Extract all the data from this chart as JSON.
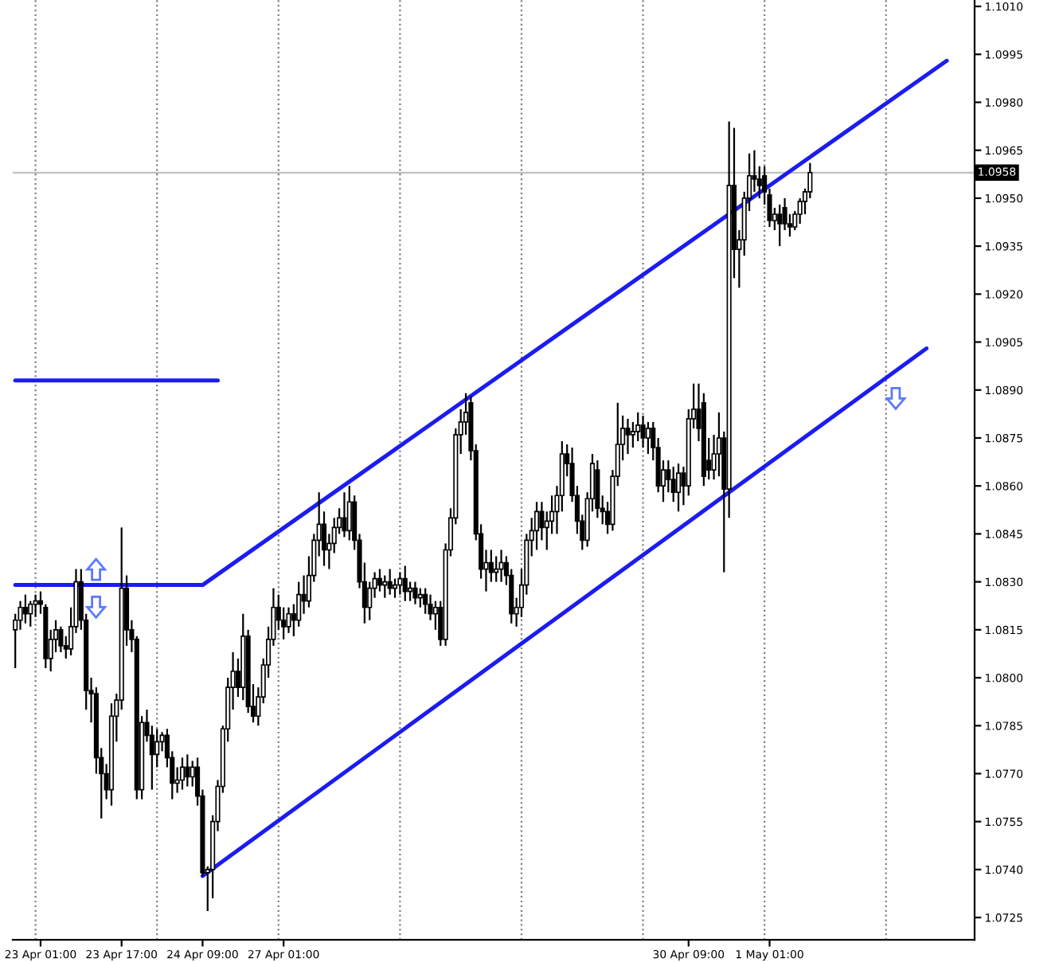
{
  "chart_data": {
    "type": "candlestick",
    "categories": [
      null,
      null,
      null,
      null,
      null,
      "23 Apr 01:00",
      null,
      null,
      null,
      null,
      null,
      null,
      null,
      null,
      null,
      null,
      null,
      null,
      null,
      null,
      null,
      "23 Apr 17:00",
      null,
      null,
      null,
      null,
      null,
      null,
      null,
      null,
      null,
      null,
      null,
      null,
      null,
      null,
      null,
      "24 Apr 09:00",
      null,
      null,
      null,
      null,
      null,
      null,
      null,
      null,
      null,
      null,
      null,
      null,
      null,
      null,
      null,
      "27 Apr 01:00",
      null,
      null,
      null,
      null,
      null,
      null,
      null,
      null,
      null,
      null,
      null,
      null,
      null,
      null,
      null,
      null,
      null,
      null,
      null,
      null,
      null,
      null,
      null,
      null,
      null,
      null,
      null,
      null,
      null,
      null,
      null,
      null,
      null,
      null,
      null,
      null,
      null,
      null,
      null,
      null,
      null,
      null,
      null,
      null,
      null,
      null,
      null,
      null,
      null,
      null,
      null,
      null,
      null,
      null,
      null,
      null,
      null,
      null,
      null,
      null,
      null,
      null,
      null,
      null,
      null,
      null,
      null,
      null,
      null,
      null,
      null,
      null,
      null,
      null,
      null,
      null,
      null,
      null,
      null,
      "30 Apr 09:00",
      null,
      null,
      null,
      null,
      null,
      null,
      null,
      null,
      null,
      null,
      null,
      null,
      null,
      null,
      null,
      "1 May 01:00",
      null,
      null,
      null,
      null,
      null,
      null,
      null,
      null,
      null,
      null,
      null,
      null,
      null,
      null,
      null,
      null,
      null,
      null,
      null,
      null,
      null,
      null,
      null,
      null,
      null,
      null,
      null,
      null,
      null,
      null,
      null,
      null,
      null,
      null,
      null,
      null,
      null,
      null,
      null,
      null
    ],
    "ohlc": [
      [
        1.0815,
        1.082,
        1.0803,
        1.0818
      ],
      [
        1.0818,
        1.0824,
        1.0815,
        1.0822
      ],
      [
        1.0822,
        1.0826,
        1.0817,
        1.082
      ],
      [
        1.082,
        1.0824,
        1.0816,
        1.0823
      ],
      [
        1.0823,
        1.0826,
        1.0819,
        1.0824
      ],
      [
        1.0824,
        1.0827,
        1.082,
        1.0823
      ],
      [
        1.0822,
        1.0823,
        1.0803,
        1.0806
      ],
      [
        1.0806,
        1.0815,
        1.0802,
        1.0812
      ],
      [
        1.0812,
        1.0818,
        1.0808,
        1.0815
      ],
      [
        1.0815,
        1.0816,
        1.0808,
        1.081
      ],
      [
        1.081,
        1.0813,
        1.0806,
        1.0809
      ],
      [
        1.0809,
        1.0822,
        1.0807,
        1.0816
      ],
      [
        1.0816,
        1.0834,
        1.0814,
        1.083
      ],
      [
        1.083,
        1.0834,
        1.0815,
        1.0818
      ],
      [
        1.0818,
        1.082,
        1.079,
        1.0796
      ],
      [
        1.0796,
        1.08,
        1.0786,
        1.0795
      ],
      [
        1.0795,
        1.0797,
        1.077,
        1.0775
      ],
      [
        1.0775,
        1.0778,
        1.0756,
        1.077
      ],
      [
        1.077,
        1.0773,
        1.0762,
        1.0765
      ],
      [
        1.0765,
        1.0792,
        1.076,
        1.0788
      ],
      [
        1.0788,
        1.0795,
        1.078,
        1.0793
      ],
      [
        1.0793,
        1.0847,
        1.079,
        1.0828
      ],
      [
        1.0828,
        1.0832,
        1.081,
        1.0815
      ],
      [
        1.0815,
        1.0818,
        1.0808,
        1.0812
      ],
      [
        1.0812,
        1.0813,
        1.0762,
        1.0765
      ],
      [
        1.0765,
        1.0788,
        1.0762,
        1.0786
      ],
      [
        1.0786,
        1.079,
        1.078,
        1.0782
      ],
      [
        1.0782,
        1.0785,
        1.0765,
        1.0776
      ],
      [
        1.0776,
        1.0784,
        1.0772,
        1.078
      ],
      [
        1.078,
        1.0783,
        1.0777,
        1.0782
      ],
      [
        1.0782,
        1.0784,
        1.0772,
        1.0775
      ],
      [
        1.0775,
        1.0777,
        1.0762,
        1.0767
      ],
      [
        1.0767,
        1.0772,
        1.0764,
        1.0768
      ],
      [
        1.0768,
        1.0775,
        1.0765,
        1.0772
      ],
      [
        1.0772,
        1.0776,
        1.0766,
        1.0769
      ],
      [
        1.0769,
        1.0774,
        1.0766,
        1.0772
      ],
      [
        1.0772,
        1.0775,
        1.076,
        1.0763
      ],
      [
        1.0763,
        1.0765,
        1.0738,
        1.0739
      ],
      [
        1.0739,
        1.0741,
        1.0727,
        1.074
      ],
      [
        1.074,
        1.0757,
        1.0731,
        1.0755
      ],
      [
        1.0755,
        1.0768,
        1.0752,
        1.0766
      ],
      [
        1.0766,
        1.0785,
        1.0764,
        1.0784
      ],
      [
        1.0784,
        1.08,
        1.078,
        1.0797
      ],
      [
        1.0797,
        1.0808,
        1.079,
        1.0802
      ],
      [
        1.0802,
        1.0806,
        1.0794,
        1.0797
      ],
      [
        1.0797,
        1.082,
        1.0793,
        1.0813
      ],
      [
        1.0813,
        1.0815,
        1.0789,
        1.0791
      ],
      [
        1.0791,
        1.0798,
        1.0786,
        1.0788
      ],
      [
        1.0788,
        1.0797,
        1.0785,
        1.0794
      ],
      [
        1.0794,
        1.0806,
        1.0792,
        1.0804
      ],
      [
        1.0804,
        1.0816,
        1.08,
        1.0812
      ],
      [
        1.0812,
        1.0828,
        1.081,
        1.0822
      ],
      [
        1.0822,
        1.0826,
        1.0815,
        1.0818
      ],
      [
        1.0818,
        1.0822,
        1.0812,
        1.0816
      ],
      [
        1.0816,
        1.0822,
        1.0814,
        1.082
      ],
      [
        1.082,
        1.0823,
        1.0813,
        1.0818
      ],
      [
        1.0818,
        1.083,
        1.0816,
        1.0826
      ],
      [
        1.0826,
        1.0832,
        1.082,
        1.0824
      ],
      [
        1.0824,
        1.0838,
        1.0822,
        1.0832
      ],
      [
        1.0832,
        1.0845,
        1.083,
        1.0843
      ],
      [
        1.0843,
        1.0858,
        1.0838,
        1.0848
      ],
      [
        1.0848,
        1.0852,
        1.0835,
        1.084
      ],
      [
        1.084,
        1.0845,
        1.0834,
        1.0842
      ],
      [
        1.0842,
        1.085,
        1.0839,
        1.0847
      ],
      [
        1.0847,
        1.0853,
        1.0845,
        1.085
      ],
      [
        1.085,
        1.0858,
        1.0844,
        1.0846
      ],
      [
        1.0846,
        1.086,
        1.0843,
        1.0855
      ],
      [
        1.0855,
        1.0857,
        1.084,
        1.0843
      ],
      [
        1.0843,
        1.0845,
        1.0828,
        1.083
      ],
      [
        1.083,
        1.0836,
        1.0817,
        1.0822
      ],
      [
        1.0822,
        1.083,
        1.0818,
        1.0828
      ],
      [
        1.0828,
        1.0833,
        1.0825,
        1.0831
      ],
      [
        1.0831,
        1.0834,
        1.0827,
        1.0829
      ],
      [
        1.0829,
        1.0832,
        1.0825,
        1.083
      ],
      [
        1.083,
        1.0834,
        1.0826,
        1.0828
      ],
      [
        1.0828,
        1.0831,
        1.0825,
        1.0829
      ],
      [
        1.0829,
        1.0833,
        1.0826,
        1.0831
      ],
      [
        1.0831,
        1.0835,
        1.0824,
        1.0827
      ],
      [
        1.0827,
        1.083,
        1.0824,
        1.0828
      ],
      [
        1.0828,
        1.083,
        1.0823,
        1.0825
      ],
      [
        1.0825,
        1.0828,
        1.0822,
        1.0826
      ],
      [
        1.0826,
        1.0828,
        1.082,
        1.0823
      ],
      [
        1.0823,
        1.0826,
        1.0818,
        1.082
      ],
      [
        1.082,
        1.0824,
        1.0815,
        1.0822
      ],
      [
        1.0822,
        1.0824,
        1.081,
        1.0812
      ],
      [
        1.0812,
        1.0842,
        1.081,
        1.084
      ],
      [
        1.084,
        1.0853,
        1.0838,
        1.085
      ],
      [
        1.085,
        1.0878,
        1.0848,
        1.0876
      ],
      [
        1.0876,
        1.0884,
        1.087,
        1.088
      ],
      [
        1.088,
        1.0889,
        1.0876,
        1.0883
      ],
      [
        1.0886,
        1.0888,
        1.0868,
        1.0871
      ],
      [
        1.0871,
        1.0873,
        1.0843,
        1.0845
      ],
      [
        1.0845,
        1.0848,
        1.0831,
        1.0834
      ],
      [
        1.0834,
        1.084,
        1.0827,
        1.0836
      ],
      [
        1.0836,
        1.084,
        1.083,
        1.0833
      ],
      [
        1.0833,
        1.0838,
        1.083,
        1.0834
      ],
      [
        1.0834,
        1.084,
        1.083,
        1.0836
      ],
      [
        1.0836,
        1.0838,
        1.0829,
        1.0832
      ],
      [
        1.0832,
        1.0834,
        1.0817,
        1.082
      ],
      [
        1.082,
        1.0825,
        1.0816,
        1.0822
      ],
      [
        1.0822,
        1.0834,
        1.0819,
        1.0829
      ],
      [
        1.0829,
        1.0845,
        1.0826,
        1.0843
      ],
      [
        1.0843,
        1.085,
        1.0838,
        1.0846
      ],
      [
        1.0846,
        1.0855,
        1.084,
        1.0852
      ],
      [
        1.0852,
        1.0855,
        1.0843,
        1.0847
      ],
      [
        1.0847,
        1.0852,
        1.084,
        1.0849
      ],
      [
        1.0849,
        1.0857,
        1.0845,
        1.0852
      ],
      [
        1.0852,
        1.086,
        1.0845,
        1.0857
      ],
      [
        1.0857,
        1.0874,
        1.0852,
        1.087
      ],
      [
        1.087,
        1.0873,
        1.0863,
        1.0867
      ],
      [
        1.0867,
        1.0872,
        1.0855,
        1.0857
      ],
      [
        1.0857,
        1.086,
        1.0845,
        1.0849
      ],
      [
        1.0849,
        1.0851,
        1.084,
        1.0843
      ],
      [
        1.0843,
        1.0858,
        1.0841,
        1.0856
      ],
      [
        1.0856,
        1.087,
        1.0852,
        1.0867
      ],
      [
        1.0865,
        1.0868,
        1.085,
        1.0853
      ],
      [
        1.0853,
        1.0857,
        1.0848,
        1.0852
      ],
      [
        1.0852,
        1.0855,
        1.0845,
        1.0848
      ],
      [
        1.0848,
        1.0865,
        1.0846,
        1.0863
      ],
      [
        1.0863,
        1.0886,
        1.086,
        1.0873
      ],
      [
        1.0873,
        1.0882,
        1.0868,
        1.0878
      ],
      [
        1.0878,
        1.0881,
        1.087,
        1.0876
      ],
      [
        1.0876,
        1.088,
        1.0872,
        1.0877
      ],
      [
        1.0877,
        1.0883,
        1.0874,
        1.0879
      ],
      [
        1.0879,
        1.0882,
        1.0872,
        1.0875
      ],
      [
        1.0875,
        1.088,
        1.087,
        1.0878
      ],
      [
        1.0878,
        1.088,
        1.0868,
        1.0872
      ],
      [
        1.0872,
        1.0875,
        1.0858,
        1.086
      ],
      [
        1.086,
        1.0868,
        1.0855,
        1.0865
      ],
      [
        1.0865,
        1.0868,
        1.0858,
        1.0862
      ],
      [
        1.0862,
        1.0866,
        1.0855,
        1.0858
      ],
      [
        1.0858,
        1.0867,
        1.0852,
        1.0864
      ],
      [
        1.0864,
        1.0866,
        1.0854,
        1.086
      ],
      [
        1.086,
        1.0884,
        1.0857,
        1.0881
      ],
      [
        1.0881,
        1.0892,
        1.0878,
        1.0884
      ],
      [
        1.0884,
        1.0892,
        1.0874,
        1.0878
      ],
      [
        1.0886,
        1.0889,
        1.086,
        1.0863
      ],
      [
        1.0868,
        1.0875,
        1.0862,
        1.0865
      ],
      [
        1.0865,
        1.0876,
        1.0862,
        1.087
      ],
      [
        1.087,
        1.0883,
        1.0863,
        1.0875
      ],
      [
        1.0875,
        1.0877,
        1.0833,
        1.0859
      ],
      [
        1.0859,
        1.0974,
        1.085,
        1.0954
      ],
      [
        1.0954,
        1.0972,
        1.0925,
        1.0934
      ],
      [
        1.0934,
        1.094,
        1.0922,
        1.0937
      ],
      [
        1.0937,
        1.0952,
        1.0932,
        1.095
      ],
      [
        1.095,
        1.0964,
        1.0946,
        1.0957
      ],
      [
        1.0957,
        1.0965,
        1.0952,
        1.0956
      ],
      [
        1.0956,
        1.096,
        1.095,
        1.0954
      ],
      [
        1.0957,
        1.096,
        1.0948,
        1.0952
      ],
      [
        1.0951,
        1.0953,
        1.0941,
        1.0943
      ],
      [
        1.0943,
        1.0947,
        1.094,
        1.0945
      ],
      [
        1.0945,
        1.0948,
        1.0935,
        1.0942
      ],
      [
        1.0947,
        1.095,
        1.094,
        1.0942
      ],
      [
        1.0942,
        1.0945,
        1.0938,
        1.0941
      ],
      [
        1.0941,
        1.0946,
        1.094,
        1.0945
      ],
      [
        1.0945,
        1.095,
        1.0942,
        1.0949
      ],
      [
        1.0949,
        1.0953,
        1.0945,
        1.0952
      ],
      [
        1.0952,
        1.0961,
        1.095,
        1.0958
      ],
      null,
      null,
      null,
      null,
      null,
      null,
      null,
      null,
      null,
      null,
      null,
      null,
      null,
      null,
      null,
      null,
      null,
      null,
      null,
      null,
      null,
      null,
      null,
      null,
      null,
      null,
      null,
      null,
      null,
      null,
      null,
      null
    ],
    "series": [
      {
        "type": "line",
        "color": "#1c1cf0",
        "values": [
          1.0893,
          null,
          null,
          null,
          null,
          null,
          null,
          null,
          null,
          null,
          null,
          null,
          null,
          null,
          null,
          null,
          null,
          null,
          null,
          null,
          null,
          null,
          null,
          null,
          null,
          null,
          null,
          null,
          null,
          null,
          null,
          null,
          null,
          null,
          null,
          null,
          null,
          null,
          null,
          null,
          1.0893,
          null,
          null,
          null,
          null,
          null,
          null,
          null,
          null,
          null,
          null,
          null,
          null,
          null,
          null,
          null,
          null,
          null,
          null,
          null,
          null,
          null,
          null,
          null,
          null,
          null,
          null,
          null,
          null,
          null,
          null,
          null,
          null,
          null,
          null,
          null,
          null,
          null,
          null,
          null,
          null,
          null,
          null,
          null,
          null,
          null,
          null,
          null,
          null,
          null,
          null,
          null,
          null,
          null,
          null,
          null,
          null,
          null,
          null,
          null,
          null,
          null,
          null,
          null,
          null,
          null,
          null,
          null,
          null,
          null,
          null,
          null,
          null,
          null,
          null,
          null,
          null,
          null,
          null,
          null,
          null,
          null,
          null,
          null,
          null,
          null,
          null,
          null,
          null,
          null,
          null,
          null,
          null,
          null,
          null,
          null,
          null,
          null,
          null,
          null,
          null,
          null,
          null,
          null,
          null,
          null,
          null,
          null,
          null,
          null,
          null,
          null,
          null,
          null,
          null,
          null,
          null,
          null,
          null,
          null,
          null,
          null,
          null,
          null,
          null,
          null,
          null,
          null,
          null,
          null,
          null,
          null,
          null,
          null,
          null,
          null,
          null,
          null,
          null,
          null,
          null,
          null,
          null,
          null,
          null,
          null,
          null,
          null,
          null,
          null
        ]
      },
      {
        "type": "line",
        "color": "#1c1cf0",
        "values": [
          1.0829,
          null,
          null,
          null,
          null,
          null,
          null,
          null,
          null,
          null,
          null,
          null,
          null,
          null,
          null,
          null,
          null,
          null,
          null,
          null,
          null,
          null,
          null,
          null,
          null,
          null,
          null,
          null,
          null,
          null,
          null,
          null,
          null,
          null,
          null,
          null,
          null,
          1.0829,
          null,
          null,
          null,
          null,
          null,
          null,
          null,
          null,
          null,
          null,
          null,
          null,
          null,
          null,
          null,
          null,
          null,
          null,
          null,
          null,
          null,
          null,
          null,
          null,
          null,
          null,
          null,
          null,
          null,
          null,
          null,
          null,
          null,
          null,
          null,
          null,
          null,
          null,
          null,
          null,
          null,
          null,
          null,
          null,
          null,
          null,
          null,
          null,
          null,
          null,
          null,
          null,
          null,
          null,
          null,
          null,
          null,
          null,
          null,
          null,
          null,
          null,
          null,
          null,
          null,
          null,
          null,
          null,
          null,
          null,
          null,
          null,
          null,
          null,
          null,
          null,
          null,
          null,
          null,
          null,
          null,
          null,
          null,
          null,
          null,
          null,
          null,
          null,
          null,
          null,
          null,
          null,
          null,
          null,
          null,
          null,
          null,
          null,
          null,
          null,
          null,
          null,
          null,
          null,
          null,
          null,
          null,
          null,
          null,
          null,
          null,
          null,
          null,
          null,
          null,
          null,
          null,
          null,
          null,
          null,
          null,
          null,
          null,
          null,
          null,
          null,
          null,
          null,
          null,
          null,
          null,
          null,
          null,
          null,
          null,
          null,
          null,
          null,
          null,
          null,
          null,
          null,
          null,
          null,
          null,
          null,
          null,
          null,
          null,
          null,
          null,
          null
        ]
      },
      {
        "type": "line",
        "color": "#1c1cf0",
        "values": [
          null,
          null,
          null,
          null,
          null,
          null,
          null,
          null,
          null,
          null,
          null,
          null,
          null,
          null,
          null,
          null,
          null,
          null,
          null,
          null,
          null,
          null,
          null,
          null,
          null,
          null,
          null,
          null,
          null,
          null,
          null,
          null,
          null,
          null,
          null,
          null,
          null,
          1.0829,
          null,
          null,
          null,
          null,
          null,
          null,
          null,
          null,
          null,
          null,
          null,
          null,
          null,
          null,
          null,
          null,
          null,
          null,
          null,
          null,
          null,
          null,
          null,
          null,
          null,
          null,
          null,
          null,
          null,
          null,
          null,
          null,
          null,
          null,
          null,
          null,
          null,
          null,
          null,
          null,
          null,
          null,
          null,
          null,
          null,
          null,
          null,
          null,
          null,
          null,
          null,
          null,
          null,
          null,
          null,
          null,
          null,
          null,
          null,
          null,
          null,
          null,
          null,
          null,
          null,
          null,
          null,
          null,
          null,
          null,
          null,
          null,
          null,
          null,
          null,
          null,
          null,
          null,
          null,
          null,
          null,
          null,
          null,
          null,
          null,
          null,
          null,
          null,
          null,
          null,
          null,
          null,
          null,
          null,
          null,
          null,
          null,
          null,
          null,
          null,
          null,
          null,
          null,
          null,
          null,
          null,
          null,
          null,
          null,
          null,
          null,
          null,
          null,
          null,
          null,
          null,
          null,
          null,
          null,
          null,
          null,
          null,
          null,
          null,
          null,
          null,
          null,
          null,
          null,
          null,
          null,
          null,
          null,
          null,
          null,
          null,
          null,
          null,
          null,
          null,
          null,
          null,
          null,
          null,
          null,
          null,
          1.0993,
          null,
          null,
          null,
          null,
          null
        ]
      },
      {
        "type": "line",
        "color": "#1c1cf0",
        "values": [
          null,
          null,
          null,
          null,
          null,
          null,
          null,
          null,
          null,
          null,
          null,
          null,
          null,
          null,
          null,
          null,
          null,
          null,
          null,
          null,
          null,
          null,
          null,
          null,
          null,
          null,
          null,
          null,
          null,
          null,
          null,
          null,
          null,
          null,
          null,
          null,
          null,
          1.0738,
          null,
          null,
          null,
          null,
          null,
          null,
          null,
          null,
          null,
          null,
          null,
          null,
          null,
          null,
          null,
          null,
          null,
          null,
          null,
          null,
          null,
          null,
          null,
          null,
          null,
          null,
          null,
          null,
          null,
          null,
          null,
          null,
          null,
          null,
          null,
          null,
          null,
          null,
          null,
          null,
          null,
          null,
          null,
          null,
          null,
          null,
          null,
          null,
          null,
          null,
          null,
          null,
          null,
          null,
          null,
          null,
          null,
          null,
          null,
          null,
          null,
          null,
          null,
          null,
          null,
          null,
          null,
          null,
          null,
          null,
          null,
          null,
          null,
          null,
          null,
          null,
          null,
          null,
          null,
          null,
          null,
          null,
          null,
          null,
          null,
          null,
          null,
          null,
          null,
          null,
          null,
          null,
          null,
          null,
          null,
          null,
          null,
          null,
          null,
          null,
          null,
          null,
          null,
          null,
          null,
          null,
          null,
          null,
          null,
          null,
          null,
          null,
          null,
          null,
          null,
          null,
          null,
          null,
          null,
          null,
          null,
          null,
          null,
          null,
          null,
          null,
          null,
          null,
          null,
          null,
          null,
          null,
          null,
          null,
          null,
          null,
          null,
          null,
          null,
          null,
          null,
          null,
          1.0903,
          null,
          null,
          null,
          null,
          null,
          null,
          null,
          null,
          null
        ]
      }
    ],
    "ref_lines": [
      {
        "axis": "y",
        "value": 1.0958,
        "label": "1.0958",
        "color": "#c0c0c0",
        "line_style": "solid"
      }
    ],
    "grid": "x",
    "ylim": [
      1.0718,
      1.1012
    ],
    "yticks": [
      1.0725,
      {
        "value": 1.074,
        "label": "1.0740"
      },
      1.0755,
      {
        "value": 1.077,
        "label": "1.0770"
      },
      1.0785,
      {
        "value": 1.08,
        "label": "1.0800"
      },
      1.0815,
      {
        "value": 1.083,
        "label": "1.0830"
      },
      1.0845,
      {
        "value": 1.086,
        "label": "1.0860"
      },
      1.0875,
      {
        "value": 1.089,
        "label": "1.0890"
      },
      1.0905,
      {
        "value": 1.092,
        "label": "1.0920"
      },
      1.0935,
      {
        "value": 1.095,
        "label": "1.0950"
      },
      1.0965,
      {
        "value": 1.098,
        "label": "1.0980"
      },
      1.0995,
      {
        "value": 1.101,
        "label": "1.1010"
      }
    ]
  }
}
